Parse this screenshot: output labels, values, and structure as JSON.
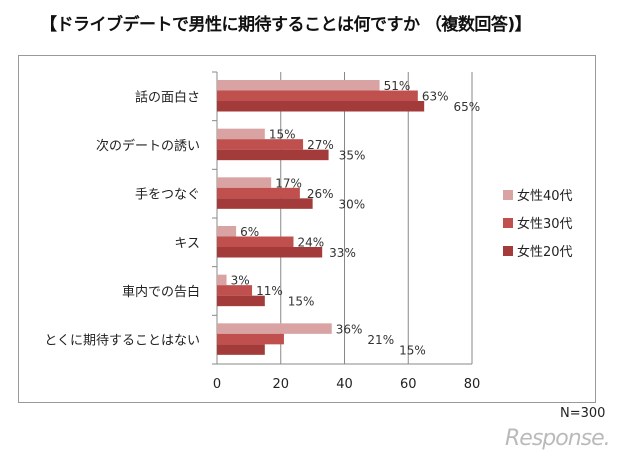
{
  "chart_data": {
    "type": "bar",
    "orientation": "horizontal",
    "title": "【ドライブデートで男性に期待することは何ですか （複数回答)】",
    "categories": [
      "話の面白さ",
      "次のデートの誘い",
      "手をつなぐ",
      "キス",
      "車内での告白",
      "とくに期待することはない"
    ],
    "series": [
      {
        "name": "女性40代",
        "color": "#d9a3a3",
        "values": [
          51,
          15,
          17,
          6,
          3,
          36
        ]
      },
      {
        "name": "女性30代",
        "color": "#c0504d",
        "values": [
          63,
          27,
          26,
          24,
          11,
          21
        ]
      },
      {
        "name": "女性20代",
        "color": "#a23b39",
        "values": [
          65,
          35,
          30,
          33,
          15,
          15
        ]
      }
    ],
    "value_suffix": "%",
    "xlim": [
      0,
      80
    ],
    "xticks": [
      0,
      20,
      40,
      60,
      80
    ],
    "grid": true,
    "legend": "right",
    "note": "N=300"
  },
  "watermark": "Response."
}
